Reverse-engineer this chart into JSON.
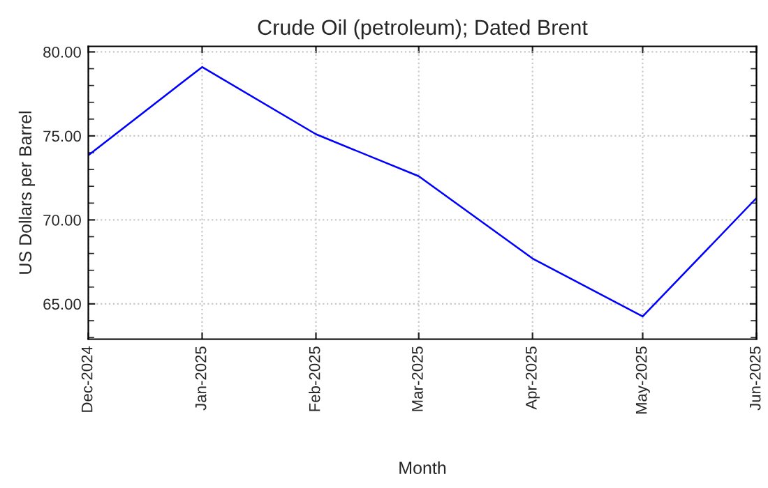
{
  "chart_data": {
    "type": "line",
    "title": "Crude Oil (petroleum); Dated Brent",
    "xlabel": "Month",
    "ylabel": "US Dollars per Barrel",
    "x": [
      "2024-12",
      "2025-01",
      "2025-02",
      "2025-03",
      "2025-04",
      "2025-05",
      "2025-06"
    ],
    "series": [
      {
        "color": "#0000ff",
        "values": [
          73.85,
          79.1,
          75.1,
          72.6,
          67.7,
          64.25,
          71.3
        ]
      }
    ],
    "xlim": [
      "2024-12",
      "2025-06"
    ],
    "xticks": [
      {
        "value": "2024-12",
        "label": "Dec-2024"
      },
      {
        "value": "2025-01",
        "label": "Jan-2025"
      },
      {
        "value": "2025-02",
        "label": "Feb-2025"
      },
      {
        "value": "2025-03",
        "label": "Mar-2025"
      },
      {
        "value": "2025-04",
        "label": "Apr-2025"
      },
      {
        "value": "2025-05",
        "label": "May-2025"
      },
      {
        "value": "2025-06",
        "label": "Jun-2025"
      }
    ],
    "ylim": [
      62.9,
      80.33
    ],
    "yticks": [
      {
        "value": 65,
        "label": "65.00"
      },
      {
        "value": 70,
        "label": "70.00"
      },
      {
        "value": 75,
        "label": "75.00"
      },
      {
        "value": 80,
        "label": "80.00"
      }
    ],
    "grid": true,
    "legend": false,
    "line_style": "solid",
    "marker": "none"
  }
}
